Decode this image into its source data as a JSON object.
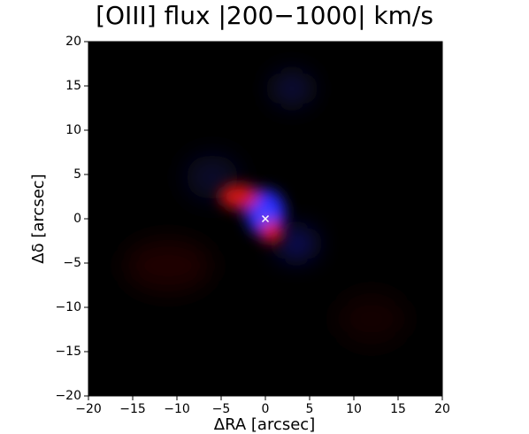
{
  "chart_data": {
    "type": "image",
    "title": "[OIII] flux |200−1000| km/s",
    "xlabel": "ΔRA [arcsec]",
    "ylabel": "Δδ [arcsec]",
    "xlim": [
      -20,
      20
    ],
    "ylim": [
      -20,
      20
    ],
    "xticks": [
      {
        "value": -20,
        "label": "−20"
      },
      {
        "value": -15,
        "label": "−15"
      },
      {
        "value": -10,
        "label": "−10"
      },
      {
        "value": -5,
        "label": "−5"
      },
      0,
      5,
      10,
      15,
      20
    ],
    "yticks": [
      {
        "value": -20,
        "label": "−20"
      },
      {
        "value": -15,
        "label": "−15"
      },
      {
        "value": -10,
        "label": "−10"
      },
      {
        "value": -5,
        "label": "−5"
      },
      0,
      5,
      10,
      15,
      20
    ],
    "marker": {
      "x": 0,
      "y": 0,
      "color": "#ffffff"
    }
  }
}
